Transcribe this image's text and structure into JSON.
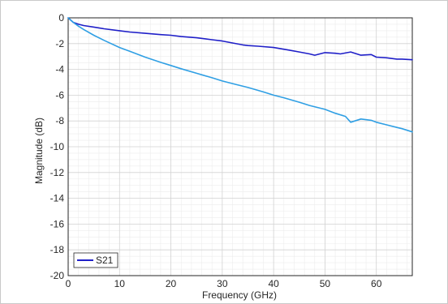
{
  "chart_data": {
    "type": "line",
    "title": "",
    "xlabel": "Frequency (GHz)",
    "ylabel": "Magnitude (dB)",
    "xlim": [
      0,
      67
    ],
    "ylim": [
      -20,
      0
    ],
    "x_ticks": [
      0,
      10,
      20,
      30,
      40,
      50,
      60
    ],
    "y_ticks": [
      0,
      -2,
      -4,
      -6,
      -8,
      -10,
      -12,
      -14,
      -16,
      -18,
      -20
    ],
    "grid": "major and minor",
    "legend_position": "bottom-left",
    "legend_entries": [
      "S21"
    ],
    "series": [
      {
        "name": "S21",
        "color": "#1f1fc8",
        "x": [
          0,
          1,
          2,
          3,
          5,
          7,
          10,
          12,
          15,
          18,
          20,
          22,
          25,
          28,
          30,
          32,
          34,
          35,
          37,
          40,
          43,
          45,
          47,
          48,
          50,
          52,
          53,
          55,
          57,
          59,
          60,
          62,
          64,
          65,
          67
        ],
        "y": [
          0,
          -0.35,
          -0.5,
          -0.6,
          -0.72,
          -0.85,
          -1.0,
          -1.1,
          -1.2,
          -1.3,
          -1.35,
          -1.45,
          -1.55,
          -1.7,
          -1.8,
          -1.95,
          -2.1,
          -2.15,
          -2.2,
          -2.3,
          -2.5,
          -2.65,
          -2.8,
          -2.9,
          -2.7,
          -2.75,
          -2.8,
          -2.65,
          -2.9,
          -2.85,
          -3.05,
          -3.1,
          -3.2,
          -3.2,
          -3.25
        ]
      },
      {
        "color": "#2f9fe4",
        "x": [
          0,
          1,
          2,
          3,
          5,
          7,
          10,
          12,
          15,
          18,
          20,
          22,
          25,
          28,
          30,
          32,
          35,
          38,
          40,
          42,
          45,
          47,
          50,
          52,
          54,
          55,
          57,
          59,
          60,
          62,
          64,
          65,
          67
        ],
        "y": [
          0,
          -0.35,
          -0.65,
          -0.9,
          -1.35,
          -1.75,
          -2.3,
          -2.6,
          -3.05,
          -3.45,
          -3.7,
          -3.95,
          -4.3,
          -4.65,
          -4.9,
          -5.1,
          -5.4,
          -5.75,
          -6.0,
          -6.2,
          -6.55,
          -6.8,
          -7.1,
          -7.4,
          -7.65,
          -8.1,
          -7.85,
          -7.95,
          -8.1,
          -8.3,
          -8.5,
          -8.6,
          -8.85
        ]
      }
    ]
  }
}
